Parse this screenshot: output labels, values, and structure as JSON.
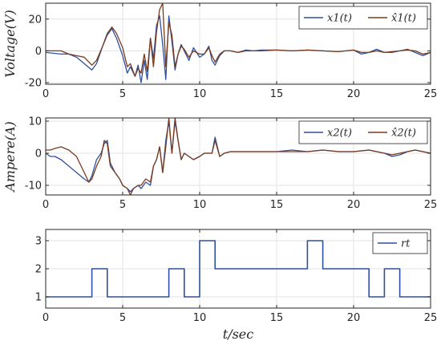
{
  "chart_data": [
    {
      "type": "line",
      "ylabel": "Voltage(V)",
      "xlabel": "",
      "xlim": [
        0,
        25
      ],
      "ylim": [
        -21,
        30
      ],
      "xticks": [
        0,
        5,
        10,
        15,
        20,
        25
      ],
      "yticks": [
        -20,
        0,
        20
      ],
      "grid": true,
      "legend_position": "top-right",
      "series": [
        {
          "name": "x1(t)",
          "color": "#2f4fa0",
          "x": [
            0,
            0.5,
            1,
            1.5,
            2,
            2.5,
            3,
            3.3,
            3.7,
            4,
            4.3,
            4.6,
            5,
            5.3,
            5.5,
            5.8,
            6,
            6.2,
            6.4,
            6.6,
            6.8,
            7,
            7.2,
            7.4,
            7.6,
            7.8,
            8,
            8.2,
            8.4,
            8.6,
            8.8,
            9,
            9.3,
            9.6,
            10,
            10.3,
            10.6,
            10.8,
            11,
            11.3,
            11.6,
            12,
            12.5,
            13,
            13.5,
            14,
            15,
            16,
            17,
            18,
            19,
            20,
            20.5,
            21,
            21.5,
            22,
            22.5,
            23,
            23.5,
            24,
            24.5,
            25
          ],
          "y": [
            -1,
            -1.5,
            -2,
            -2,
            -4,
            -8,
            -12,
            -8,
            3,
            10,
            14,
            8,
            -3,
            -14,
            -10,
            -16,
            -9,
            -20,
            -6,
            -18,
            8,
            -5,
            16,
            22,
            4,
            -18,
            22,
            6,
            -12,
            -2,
            4,
            0,
            -6,
            2,
            -4,
            -2,
            3,
            -6,
            -9,
            -3,
            0,
            0,
            -1,
            0.5,
            0,
            0.5,
            0.5,
            0,
            0.5,
            0,
            -0.5,
            0.5,
            -2,
            -1,
            1,
            -1,
            -1,
            0,
            1,
            -1,
            -3,
            -1
          ]
        },
        {
          "name": "x̂1(t)",
          "color": "#7a3b1e",
          "x": [
            0,
            0.5,
            1,
            1.5,
            2,
            2.5,
            3,
            3.3,
            3.7,
            4,
            4.3,
            4.6,
            5,
            5.3,
            5.5,
            5.8,
            6,
            6.2,
            6.4,
            6.6,
            6.8,
            7,
            7.2,
            7.4,
            7.6,
            7.8,
            8,
            8.2,
            8.4,
            8.6,
            8.8,
            9,
            9.3,
            9.6,
            10,
            10.3,
            10.6,
            10.8,
            11,
            11.3,
            11.6,
            12,
            12.5,
            13,
            13.5,
            14,
            15,
            16,
            17,
            18,
            19,
            20,
            20.5,
            21,
            21.5,
            22,
            22.5,
            23,
            23.5,
            24,
            24.5,
            25
          ],
          "y": [
            0,
            0,
            0,
            -2,
            -3,
            -4,
            -9,
            -6,
            3,
            11,
            15,
            11,
            2,
            -10,
            -8,
            -16,
            -11,
            -14,
            -2,
            -13,
            8,
            -10,
            12,
            26,
            30,
            -10,
            18,
            10,
            -10,
            -2,
            3,
            1,
            -4,
            0,
            -2,
            -2,
            2,
            -3,
            -7,
            -2,
            0,
            0,
            -1,
            0,
            0,
            0,
            0.5,
            0,
            0.5,
            0,
            -0.5,
            0.5,
            -1,
            -1,
            0,
            -1,
            -0.5,
            0,
            0.5,
            0,
            -2,
            -1
          ]
        }
      ]
    },
    {
      "type": "line",
      "ylabel": "Ampere(A)",
      "xlabel": "",
      "xlim": [
        0,
        25
      ],
      "ylim": [
        -13,
        11
      ],
      "xticks": [
        0,
        5,
        10,
        15,
        20,
        25
      ],
      "yticks": [
        -10,
        0,
        10
      ],
      "grid": true,
      "legend_position": "top-right",
      "series": [
        {
          "name": "x2(t)",
          "color": "#2f4fa0",
          "x": [
            0,
            0.3,
            0.6,
            1,
            1.5,
            2,
            2.5,
            2.8,
            3,
            3.3,
            3.6,
            3.8,
            4,
            4.2,
            4.5,
            4.8,
            5,
            5.3,
            5.5,
            5.7,
            6,
            6.2,
            6.5,
            6.8,
            7,
            7.2,
            7.4,
            7.6,
            7.8,
            8,
            8.2,
            8.4,
            8.6,
            8.8,
            9,
            9.3,
            9.6,
            10,
            10.3,
            10.6,
            10.8,
            11,
            11.3,
            11.6,
            12,
            13,
            14,
            15,
            16,
            17,
            18,
            19,
            20,
            21,
            22,
            22.5,
            23,
            23.5,
            24,
            24.5,
            25
          ],
          "y": [
            0,
            -1,
            -1,
            -2,
            -4,
            -6,
            -8,
            -9,
            -7,
            -2,
            0,
            3,
            4,
            -3,
            -6,
            -8,
            -10,
            -11,
            -12,
            -11,
            -10,
            -11,
            -9,
            -10,
            -4,
            -2,
            2,
            -6,
            4,
            10,
            0,
            10,
            4,
            -2,
            0,
            -1,
            -2,
            -1,
            0,
            0,
            0,
            5,
            -1,
            0,
            0.5,
            0.5,
            0.5,
            0.5,
            1,
            0.5,
            1,
            0.5,
            0.5,
            1,
            0,
            -1,
            -0.5,
            0.5,
            1,
            0.5,
            0
          ]
        },
        {
          "name": "x̂2(t)",
          "color": "#7a3b1e",
          "x": [
            0,
            0.3,
            0.6,
            1,
            1.5,
            2,
            2.5,
            2.8,
            3,
            3.3,
            3.6,
            3.8,
            4,
            4.2,
            4.5,
            4.8,
            5,
            5.3,
            5.5,
            5.7,
            6,
            6.2,
            6.5,
            6.8,
            7,
            7.2,
            7.4,
            7.6,
            7.8,
            8,
            8.2,
            8.4,
            8.6,
            8.8,
            9,
            9.3,
            9.6,
            10,
            10.3,
            10.6,
            10.8,
            11,
            11.3,
            11.6,
            12,
            13,
            14,
            15,
            16,
            17,
            18,
            19,
            20,
            21,
            22,
            22.5,
            23,
            23.5,
            24,
            24.5,
            25
          ],
          "y": [
            1,
            1,
            1.5,
            2,
            1,
            -1,
            -6,
            -9,
            -8,
            -4,
            -1,
            4,
            3,
            -4,
            -6,
            -8,
            -10,
            -11,
            -13,
            -11,
            -10,
            -10,
            -8,
            -9,
            -4,
            -2,
            2,
            -6,
            2,
            11,
            0,
            11,
            4,
            -2,
            0,
            -1,
            -2,
            -1,
            0,
            0,
            0,
            4,
            -1,
            0,
            0.5,
            0.5,
            0.5,
            0.5,
            0.5,
            0.5,
            1,
            0.5,
            0.5,
            1,
            0,
            -0.5,
            0,
            0.5,
            1,
            0.5,
            0
          ]
        }
      ]
    },
    {
      "type": "line",
      "ylabel": "",
      "xlabel": "t/sec",
      "xlim": [
        0,
        25
      ],
      "ylim": [
        0.6,
        3.4
      ],
      "xticks": [
        0,
        5,
        10,
        15,
        20,
        25
      ],
      "yticks": [
        1,
        2,
        3
      ],
      "grid": true,
      "legend_position": "top-right",
      "series": [
        {
          "name": "rt",
          "color": "#2f4fa0",
          "step": true,
          "x": [
            0,
            3,
            3,
            4,
            4,
            8,
            8,
            9,
            9,
            10,
            10,
            11,
            11,
            17,
            17,
            18,
            18,
            21,
            21,
            22,
            22,
            23,
            23,
            25
          ],
          "y": [
            1,
            1,
            2,
            2,
            1,
            1,
            2,
            2,
            1,
            1,
            3,
            3,
            2,
            2,
            3,
            3,
            2,
            2,
            1,
            1,
            2,
            2,
            1,
            1
          ]
        }
      ]
    }
  ]
}
